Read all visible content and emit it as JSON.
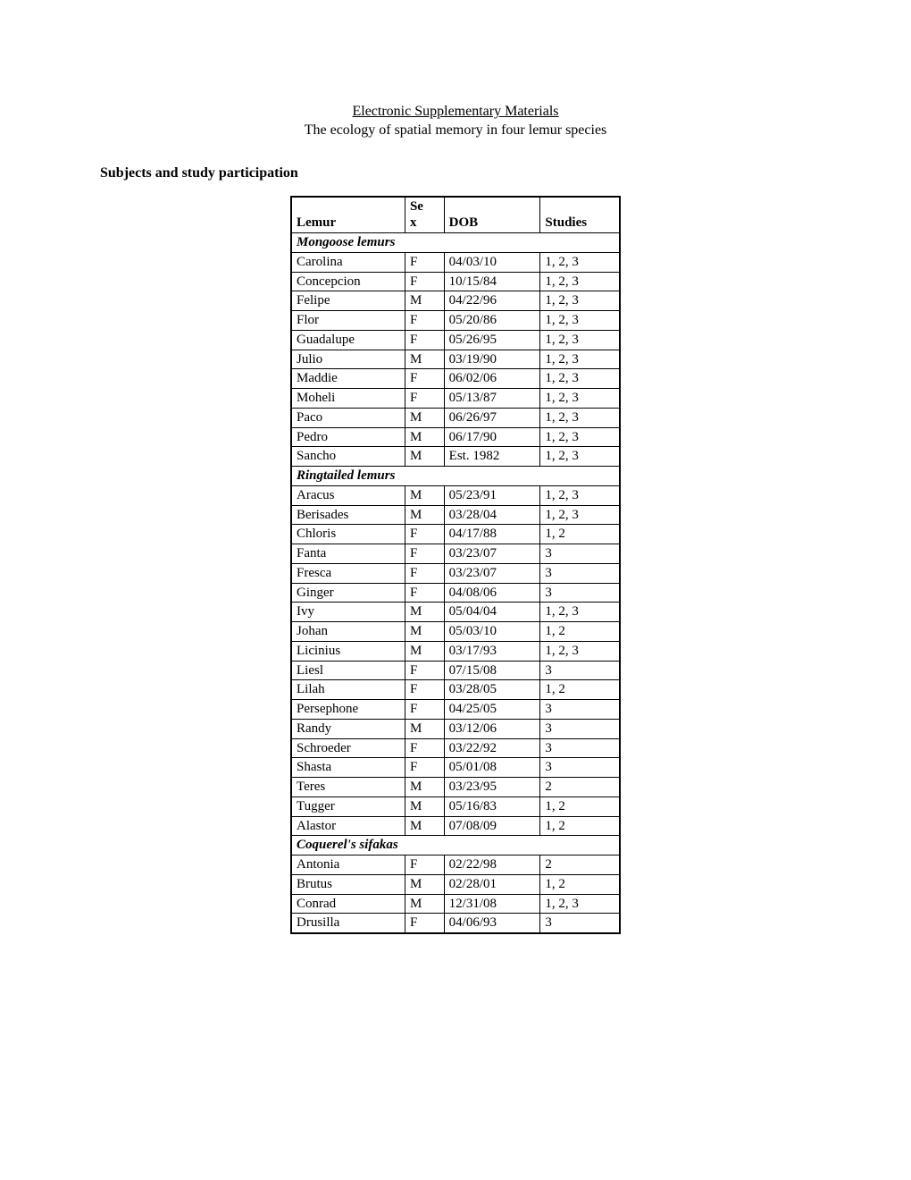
{
  "header": {
    "title": "Electronic Supplementary Materials",
    "subtitle": "The ecology of spatial memory in four lemur species",
    "section": "Subjects and study participation"
  },
  "table": {
    "columns": {
      "lemur": "Lemur",
      "sex": "Sex",
      "dob": "DOB",
      "studies": "Studies"
    },
    "groups": [
      {
        "name": "Mongoose lemurs",
        "rows": [
          {
            "lemur": "Carolina",
            "sex": "F",
            "dob": "04/03/10",
            "studies": "1, 2, 3"
          },
          {
            "lemur": "Concepcion",
            "sex": "F",
            "dob": "10/15/84",
            "studies": "1, 2, 3"
          },
          {
            "lemur": "Felipe",
            "sex": "M",
            "dob": "04/22/96",
            "studies": "1, 2, 3"
          },
          {
            "lemur": "Flor",
            "sex": "F",
            "dob": "05/20/86",
            "studies": "1, 2, 3"
          },
          {
            "lemur": "Guadalupe",
            "sex": "F",
            "dob": "05/26/95",
            "studies": "1, 2, 3"
          },
          {
            "lemur": "Julio",
            "sex": "M",
            "dob": "03/19/90",
            "studies": "1, 2, 3"
          },
          {
            "lemur": "Maddie",
            "sex": "F",
            "dob": "06/02/06",
            "studies": "1, 2, 3"
          },
          {
            "lemur": "Moheli",
            "sex": "F",
            "dob": "05/13/87",
            "studies": "1, 2, 3"
          },
          {
            "lemur": "Paco",
            "sex": "M",
            "dob": "06/26/97",
            "studies": "1, 2, 3"
          },
          {
            "lemur": "Pedro",
            "sex": "M",
            "dob": "06/17/90",
            "studies": "1, 2, 3"
          },
          {
            "lemur": "Sancho",
            "sex": "M",
            "dob": "Est. 1982",
            "studies": "1, 2, 3"
          }
        ]
      },
      {
        "name": "Ringtailed lemurs",
        "rows": [
          {
            "lemur": "Aracus",
            "sex": "M",
            "dob": "05/23/91",
            "studies": "1, 2, 3"
          },
          {
            "lemur": "Berisades",
            "sex": "M",
            "dob": "03/28/04",
            "studies": "1, 2, 3"
          },
          {
            "lemur": "Chloris",
            "sex": "F",
            "dob": "04/17/88",
            "studies": "1, 2"
          },
          {
            "lemur": "Fanta",
            "sex": "F",
            "dob": "03/23/07",
            "studies": "3"
          },
          {
            "lemur": "Fresca",
            "sex": "F",
            "dob": "03/23/07",
            "studies": "3"
          },
          {
            "lemur": "Ginger",
            "sex": "F",
            "dob": "04/08/06",
            "studies": "3"
          },
          {
            "lemur": "Ivy",
            "sex": "M",
            "dob": "05/04/04",
            "studies": "1, 2, 3"
          },
          {
            "lemur": "Johan",
            "sex": "M",
            "dob": "05/03/10",
            "studies": "1, 2"
          },
          {
            "lemur": "Licinius",
            "sex": "M",
            "dob": "03/17/93",
            "studies": "1, 2, 3"
          },
          {
            "lemur": "Liesl",
            "sex": "F",
            "dob": "07/15/08",
            "studies": "3"
          },
          {
            "lemur": "Lilah",
            "sex": "F",
            "dob": "03/28/05",
            "studies": "1, 2"
          },
          {
            "lemur": "Persephone",
            "sex": "F",
            "dob": "04/25/05",
            "studies": "3"
          },
          {
            "lemur": "Randy",
            "sex": "M",
            "dob": "03/12/06",
            "studies": "3"
          },
          {
            "lemur": "Schroeder",
            "sex": "F",
            "dob": "03/22/92",
            "studies": "3"
          },
          {
            "lemur": "Shasta",
            "sex": "F",
            "dob": "05/01/08",
            "studies": "3"
          },
          {
            "lemur": "Teres",
            "sex": "M",
            "dob": "03/23/95",
            "studies": "2"
          },
          {
            "lemur": "Tugger",
            "sex": "M",
            "dob": "05/16/83",
            "studies": "1, 2"
          },
          {
            "lemur": "Alastor",
            "sex": "M",
            "dob": "07/08/09",
            "studies": "1, 2"
          }
        ]
      },
      {
        "name": "Coquerel's sifakas",
        "rows": [
          {
            "lemur": "Antonia",
            "sex": "F",
            "dob": "02/22/98",
            "studies": "2"
          },
          {
            "lemur": "Brutus",
            "sex": "M",
            "dob": "02/28/01",
            "studies": "1, 2"
          },
          {
            "lemur": "Conrad",
            "sex": "M",
            "dob": "12/31/08",
            "studies": "1, 2, 3"
          },
          {
            "lemur": "Drusilla",
            "sex": "F",
            "dob": "04/06/93",
            "studies": "3"
          }
        ]
      }
    ]
  }
}
